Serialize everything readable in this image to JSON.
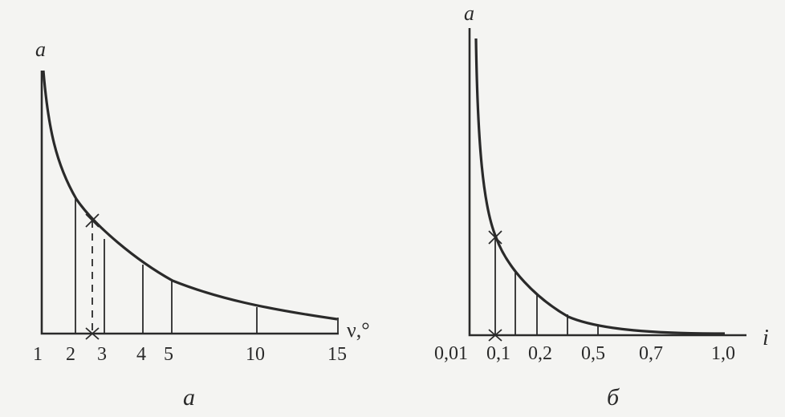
{
  "diagrams": {
    "left": {
      "y_axis_label": "a",
      "x_axis_label": "ν,°",
      "tick_labels": [
        "1",
        "2",
        "3",
        "4",
        "5",
        "10",
        "15"
      ],
      "panel_label": "а"
    },
    "right": {
      "y_axis_label": "a",
      "x_axis_label": "i",
      "tick_labels": [
        "0,01",
        "0,1",
        "0,2",
        "0,5",
        "0,7",
        "1,0"
      ],
      "panel_label": "б"
    }
  }
}
